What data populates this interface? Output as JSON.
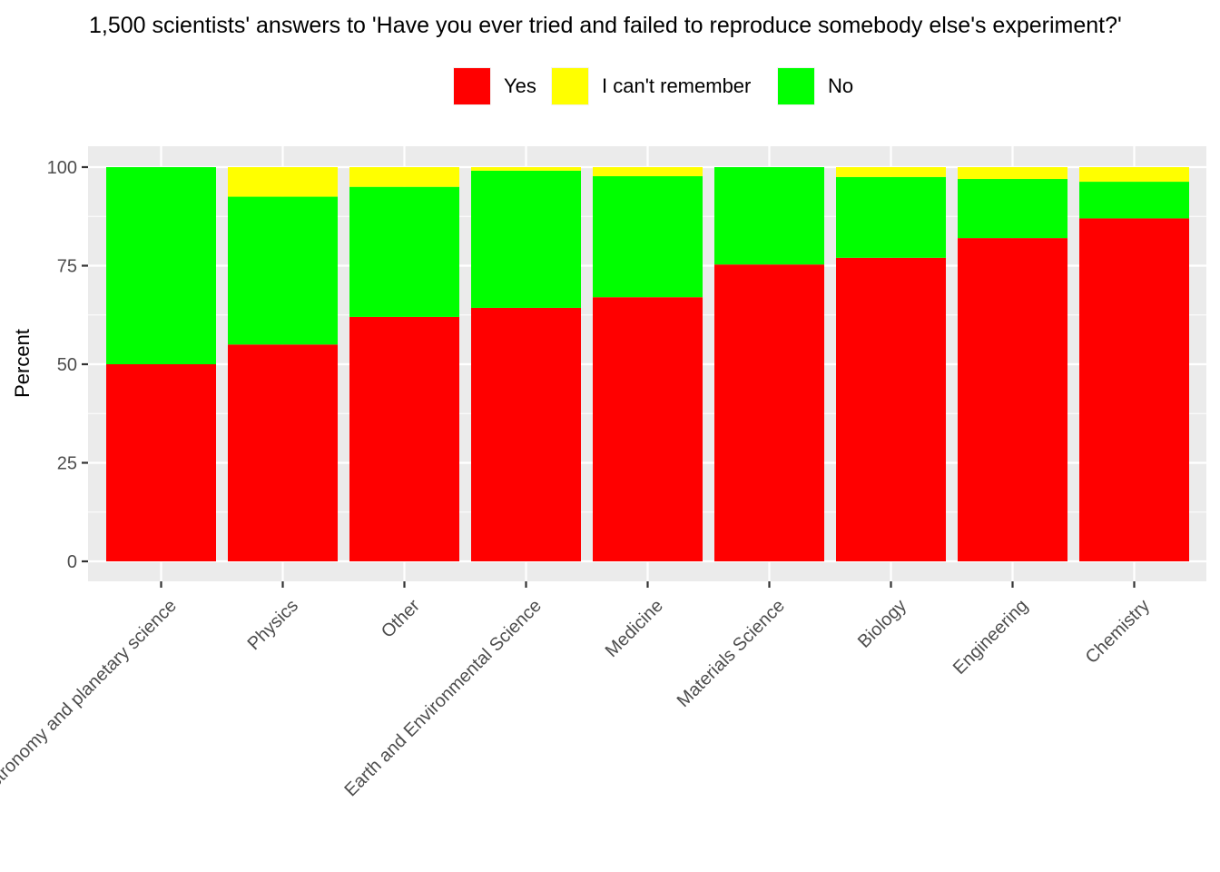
{
  "chart_data": {
    "type": "bar",
    "stacked": true,
    "title": "1,500 scientists' answers to 'Have you ever tried and failed to reproduce somebody else's experiment?'",
    "xlabel": "",
    "ylabel": "Percent",
    "ylim": [
      0,
      105
    ],
    "yticks": [
      0,
      25,
      50,
      75,
      100
    ],
    "grid": true,
    "legend_position": "top",
    "categories": [
      "Astronomy and planetary science",
      "Physics",
      "Other",
      "Earth and Environmental Science",
      "Medicine",
      "Materials Science",
      "Biology",
      "Engineering",
      "Chemistry"
    ],
    "series": [
      {
        "name": "Yes",
        "color": "#ff0000",
        "values": [
          50,
          55,
          62,
          64.3,
          67,
          75.3,
          77,
          82,
          87
        ]
      },
      {
        "name": "No",
        "color": "#00ff00",
        "values": [
          50,
          37.5,
          33,
          34.8,
          30.7,
          24.7,
          20.5,
          15,
          9.3
        ]
      },
      {
        "name": "I can't remember",
        "color": "#ffff00",
        "values": [
          0,
          7.5,
          5,
          0.9,
          2.3,
          0,
          2.5,
          3,
          3.7
        ]
      }
    ],
    "legend_order": [
      "Yes",
      "I can't remember",
      "No"
    ]
  }
}
